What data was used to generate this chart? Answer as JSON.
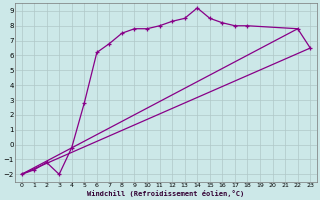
{
  "xlabel": "Windchill (Refroidissement éolien,°C)",
  "background_color": "#cce8e8",
  "grid_color": "#b0c8c8",
  "line_color": "#880088",
  "xlim": [
    -0.5,
    23.5
  ],
  "ylim": [
    -2.5,
    9.5
  ],
  "xticks": [
    0,
    1,
    2,
    3,
    4,
    5,
    6,
    7,
    8,
    9,
    10,
    11,
    12,
    13,
    14,
    15,
    16,
    17,
    18,
    19,
    20,
    21,
    22,
    23
  ],
  "yticks": [
    -2,
    -1,
    0,
    1,
    2,
    3,
    4,
    5,
    6,
    7,
    8,
    9
  ],
  "curve_x": [
    0,
    1,
    2,
    3,
    4,
    5,
    6,
    7,
    8,
    9,
    10,
    11,
    12,
    13,
    14,
    15,
    16,
    17,
    18,
    22,
    23
  ],
  "curve_y": [
    -2,
    -1.7,
    -1.2,
    -2,
    -0.2,
    2.8,
    6.2,
    6.8,
    7.5,
    7.8,
    7.8,
    8.0,
    8.3,
    8.5,
    9.2,
    8.5,
    8.2,
    8.0,
    8.0,
    7.8,
    6.5
  ],
  "line1_x": [
    0,
    23
  ],
  "line1_y": [
    -2,
    6.5
  ],
  "line2_x": [
    0,
    22
  ],
  "line2_y": [
    -2,
    7.8
  ]
}
